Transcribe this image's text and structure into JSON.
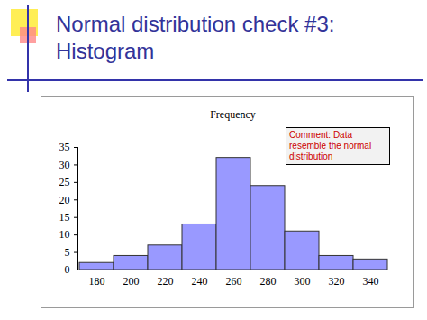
{
  "slide_title": "Normal distribution check #3: Histogram",
  "chart_data": {
    "type": "bar",
    "title": "Frequency",
    "categories": [
      "180",
      "200",
      "220",
      "240",
      "260",
      "280",
      "300",
      "320",
      "340"
    ],
    "values": [
      2,
      4,
      7,
      13,
      32,
      24,
      11,
      4,
      3
    ],
    "color": "#9999ff",
    "ylim": [
      0,
      35
    ],
    "yticks": [
      0,
      5,
      10,
      15,
      20,
      25,
      30,
      35
    ],
    "grid": false,
    "annotations": [
      "Comment: Data resemble the normal distribution"
    ]
  }
}
